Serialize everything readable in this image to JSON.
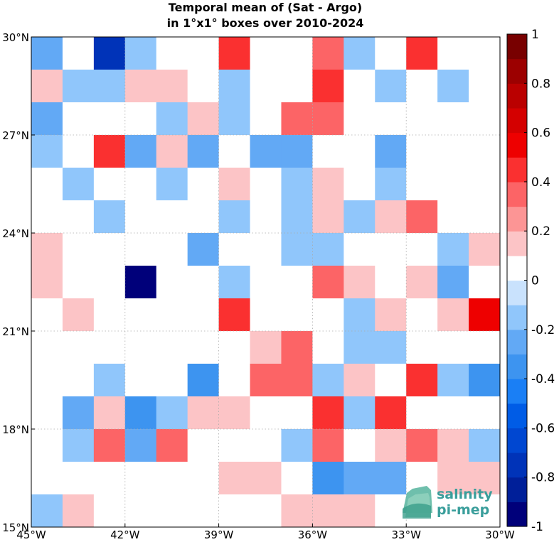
{
  "chart_data": {
    "type": "heatmap",
    "title": [
      "Temporal mean of (Sat - Argo)",
      "in 1°x1° boxes over 2010-2024"
    ],
    "xlabel": "",
    "ylabel": "",
    "x_range": [
      -45,
      -30
    ],
    "y_range": [
      15,
      30
    ],
    "x_ticks": [
      {
        "value": -45,
        "label": "45°W"
      },
      {
        "value": -42,
        "label": "42°W"
      },
      {
        "value": -39,
        "label": "39°W"
      },
      {
        "value": -36,
        "label": "36°W"
      },
      {
        "value": -33,
        "label": "33°W"
      },
      {
        "value": -30,
        "label": "30°W"
      }
    ],
    "y_ticks": [
      {
        "value": 15,
        "label": "15°N"
      },
      {
        "value": 18,
        "label": "18°N"
      },
      {
        "value": 21,
        "label": "21°N"
      },
      {
        "value": 24,
        "label": "24°N"
      },
      {
        "value": 27,
        "label": "27°N"
      },
      {
        "value": 30,
        "label": "30°N"
      }
    ],
    "grid": true,
    "colorbar": {
      "range": [
        -1,
        1
      ],
      "levels": 20,
      "ticks": [
        {
          "value": 1,
          "label": "1"
        },
        {
          "value": 0.8,
          "label": "0.8"
        },
        {
          "value": 0.6,
          "label": "0.6"
        },
        {
          "value": 0.4,
          "label": "0.4"
        },
        {
          "value": 0.2,
          "label": "0.2"
        },
        {
          "value": 0,
          "label": "0"
        },
        {
          "value": -0.2,
          "label": "-0.2"
        },
        {
          "value": -0.4,
          "label": "-0.4"
        },
        {
          "value": -0.6,
          "label": "-0.6"
        },
        {
          "value": -0.8,
          "label": "-0.8"
        },
        {
          "value": -1,
          "label": "-1"
        }
      ],
      "colors_low_to_high": [
        "#00007a",
        "#001f99",
        "#0033b8",
        "#0047d1",
        "#005ce6",
        "#1a7ff5",
        "#3d94f0",
        "#62a9f5",
        "#90c6fb",
        "#c9e2fd",
        "#ffffff",
        "#fcc4c6",
        "#fc9595",
        "#fc6466",
        "#fa3030",
        "#ee0000",
        "#d40000",
        "#ba0000",
        "#9c0000",
        "#780000"
      ]
    },
    "grid_values_north_to_south": [
      [
        -0.25,
        0,
        -0.75,
        -0.15,
        0,
        0,
        0.45,
        0,
        0,
        0.3,
        -0.15,
        0,
        0.45,
        0,
        0
      ],
      [
        0.15,
        -0.15,
        -0.15,
        0.15,
        0.15,
        0,
        -0.15,
        0,
        0,
        0.4,
        0,
        -0.15,
        0,
        -0.15,
        0
      ],
      [
        -0.3,
        0,
        0,
        0,
        -0.15,
        0.15,
        -0.15,
        0,
        0.3,
        0.3,
        0,
        0,
        0,
        0,
        0
      ],
      [
        -0.15,
        0,
        0.4,
        -0.25,
        0.15,
        -0.25,
        0,
        -0.25,
        -0.25,
        0,
        0,
        -0.25,
        0,
        0,
        0
      ],
      [
        0,
        -0.15,
        0,
        0,
        -0.15,
        0,
        0.15,
        0,
        -0.15,
        0.15,
        0,
        -0.15,
        0,
        0,
        0
      ],
      [
        0,
        0,
        -0.15,
        0,
        0,
        0,
        -0.15,
        0,
        -0.15,
        0.15,
        -0.15,
        0.15,
        0.3,
        0,
        0
      ],
      [
        0.15,
        0,
        0,
        0,
        0,
        -0.25,
        0,
        0,
        -0.15,
        -0.15,
        0,
        0,
        0,
        -0.15,
        0.15
      ],
      [
        0.15,
        0,
        0,
        -1.0,
        0,
        0,
        -0.15,
        0,
        0,
        0.3,
        0.15,
        0,
        0.15,
        -0.25,
        0
      ],
      [
        0,
        0.15,
        0,
        0,
        0,
        0,
        0.4,
        0,
        0,
        0,
        -0.15,
        0.15,
        0,
        0.15,
        0.5
      ],
      [
        0,
        0,
        0,
        0,
        0,
        0,
        0,
        0.15,
        0.3,
        0,
        -0.15,
        -0.15,
        0,
        0,
        0
      ],
      [
        0,
        0,
        -0.15,
        0,
        0,
        -0.35,
        0,
        0.3,
        0.3,
        -0.15,
        0.15,
        0,
        0.45,
        -0.15,
        -0.35
      ],
      [
        0,
        -0.25,
        0.15,
        -0.35,
        -0.15,
        0.15,
        0.15,
        0,
        0,
        0.45,
        -0.15,
        0.4,
        0,
        0,
        0
      ],
      [
        0,
        -0.15,
        0.3,
        -0.25,
        0.3,
        0,
        0,
        0,
        -0.15,
        0.3,
        0,
        0.15,
        0.3,
        0.15,
        -0.15
      ],
      [
        0,
        0,
        0,
        0,
        0,
        0,
        0.15,
        0.15,
        0,
        -0.35,
        -0.25,
        -0.25,
        0,
        0.15,
        0.15
      ],
      [
        -0.15,
        0.15,
        0,
        0,
        0,
        0,
        0,
        0,
        0.15,
        0.15,
        0.15,
        0,
        0,
        0,
        0
      ]
    ]
  },
  "logo": {
    "line1": "salinity",
    "line2": "pi-mep"
  }
}
